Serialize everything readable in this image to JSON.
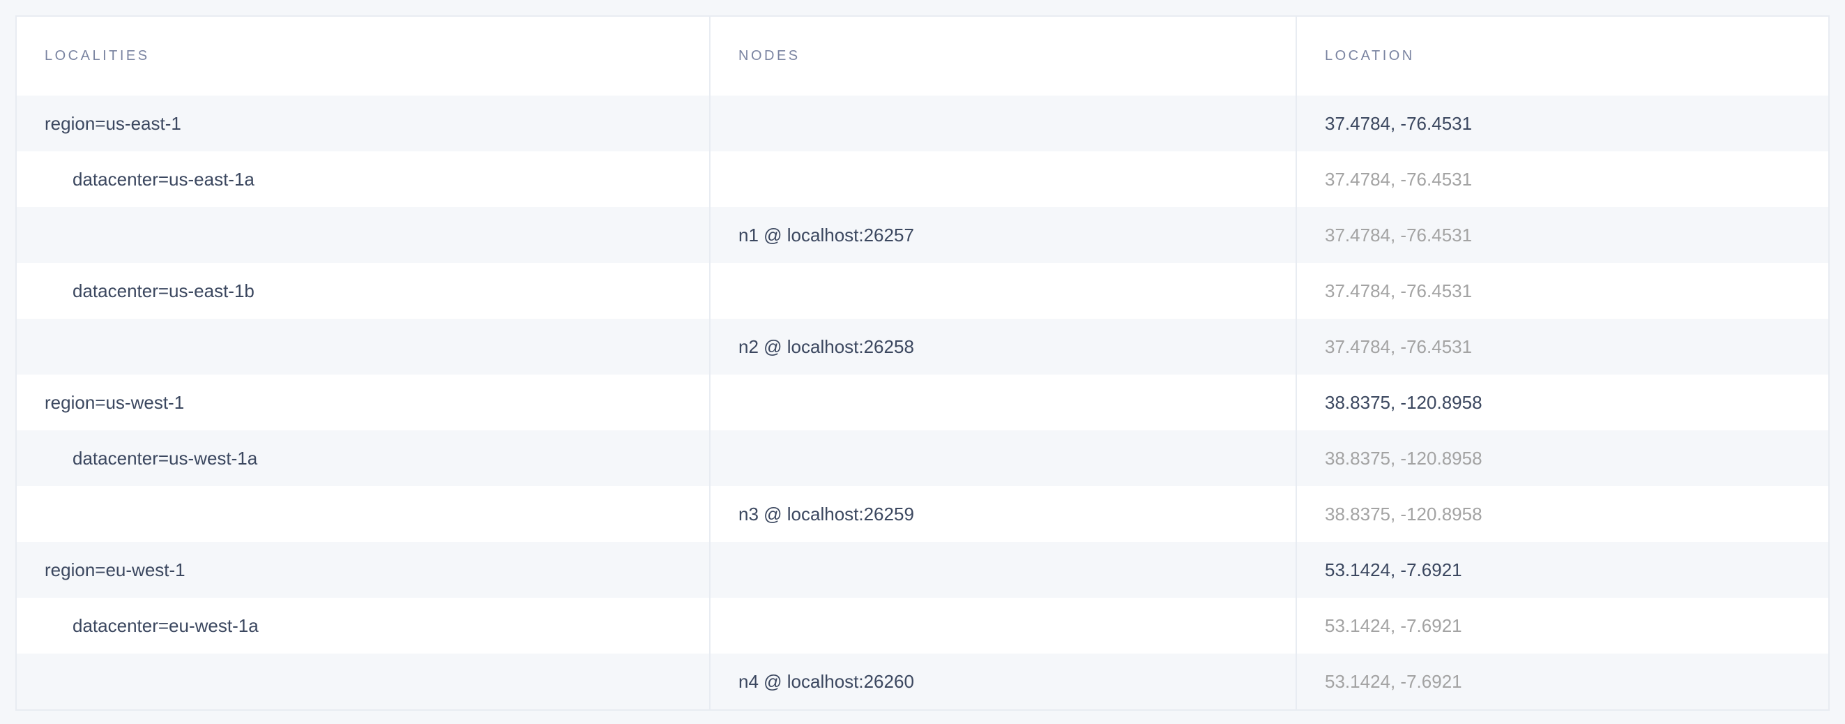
{
  "columns": [
    "LOCALITIES",
    "NODES",
    "LOCATION"
  ],
  "rows": [
    {
      "locality": "region=us-east-1",
      "level": 0,
      "node": "",
      "location": "37.4784, -76.4531"
    },
    {
      "locality": "datacenter=us-east-1a",
      "level": 1,
      "node": "",
      "location": "37.4784, -76.4531"
    },
    {
      "locality": "",
      "level": 2,
      "node": "n1 @ localhost:26257",
      "location": "37.4784, -76.4531"
    },
    {
      "locality": "datacenter=us-east-1b",
      "level": 1,
      "node": "",
      "location": "37.4784, -76.4531"
    },
    {
      "locality": "",
      "level": 2,
      "node": "n2 @ localhost:26258",
      "location": "37.4784, -76.4531"
    },
    {
      "locality": "region=us-west-1",
      "level": 0,
      "node": "",
      "location": "38.8375, -120.8958"
    },
    {
      "locality": "datacenter=us-west-1a",
      "level": 1,
      "node": "",
      "location": "38.8375, -120.8958"
    },
    {
      "locality": "",
      "level": 2,
      "node": "n3 @ localhost:26259",
      "location": "38.8375, -120.8958"
    },
    {
      "locality": "region=eu-west-1",
      "level": 0,
      "node": "",
      "location": "53.1424, -7.6921"
    },
    {
      "locality": "datacenter=eu-west-1a",
      "level": 1,
      "node": "",
      "location": "53.1424, -7.6921"
    },
    {
      "locality": "",
      "level": 2,
      "node": "n4 @ localhost:26260",
      "location": "53.1424, -7.6921"
    }
  ],
  "colors": {
    "text": "#3b475f",
    "muted_text": "#a3a3a3",
    "header_text": "#7a84a1",
    "stripe": "#f5f7fa",
    "border": "#e8ecf2"
  }
}
